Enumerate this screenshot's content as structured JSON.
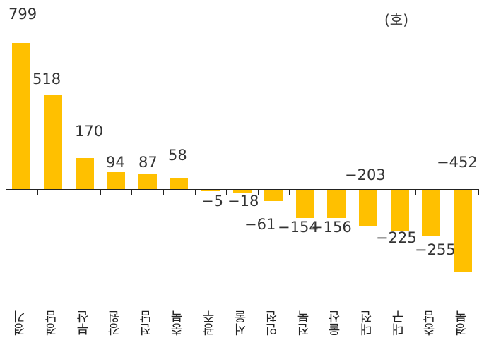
{
  "chart_data": {
    "type": "bar",
    "title": "",
    "unit": "(호)",
    "xlabel": "",
    "ylabel": "",
    "categories": [
      "경기",
      "경남",
      "부산",
      "강원",
      "전남",
      "충북",
      "광주",
      "서울",
      "인천",
      "전북",
      "울산",
      "대전",
      "대구",
      "충남",
      "경북"
    ],
    "values": [
      799,
      518,
      170,
      94,
      87,
      58,
      -5,
      -18,
      -61,
      -154,
      -156,
      -203,
      -225,
      -255,
      -452
    ],
    "value_labels": [
      "799",
      "518",
      "170",
      "94",
      "87",
      "58",
      "−5",
      "−18",
      "−61",
      "−154",
      "−156",
      "−203",
      "−225",
      "−255",
      "−452"
    ],
    "ylim": [
      -452,
      799
    ],
    "grid": false,
    "legend": null,
    "bar_color": "#FFC000"
  }
}
